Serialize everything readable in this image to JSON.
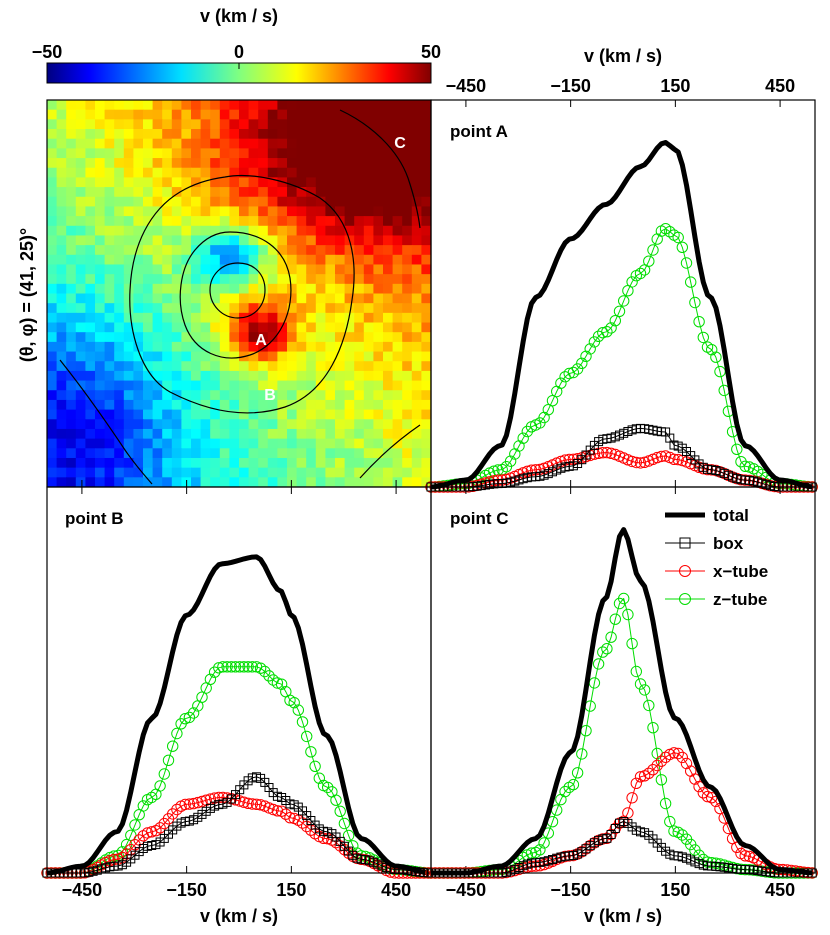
{
  "colorbar": {
    "title": "v (km / s)",
    "tick_labels": [
      "−50",
      "0",
      "50"
    ],
    "min": -50,
    "max": 50
  },
  "map_panel": {
    "ylabel": "(θ, φ) = (41, 25)°",
    "markers": [
      "A",
      "B",
      "C"
    ],
    "colormap": "jet"
  },
  "profile_axes": {
    "xlabel": "v (km / s)",
    "tick_labels": [
      "−450",
      "−150",
      "150",
      "450"
    ],
    "tick_values": [
      -450,
      -150,
      150,
      450
    ],
    "xlim": [
      -550,
      550
    ]
  },
  "legend": {
    "entries": [
      "total",
      "box",
      "x−tube",
      "z−tube"
    ]
  },
  "colors": {
    "total": "#000000",
    "box": "#000000",
    "x_tube": "#ff0000",
    "z_tube": "#00dd00"
  },
  "chart_data": [
    {
      "type": "heatmap",
      "title": "",
      "colorbar_label": "v (km / s)",
      "ylabel": "(θ, φ) = (41, 25)°",
      "clim": [
        -50,
        50
      ],
      "annotations": [
        "A",
        "B",
        "C"
      ],
      "features": {
        "A": 45,
        "B": 5,
        "C": 40,
        "center_blue_blob": -45
      }
    },
    {
      "type": "line",
      "title": "point A",
      "xlabel": "",
      "x": [
        -550,
        -450,
        -350,
        -250,
        -150,
        -50,
        50,
        120,
        150,
        250,
        350,
        450,
        550
      ],
      "ylim": [
        0,
        1.1
      ],
      "series": [
        {
          "name": "total",
          "values": [
            0,
            0.02,
            0.12,
            0.55,
            0.72,
            0.82,
            0.93,
            1.0,
            0.98,
            0.55,
            0.12,
            0.02,
            0
          ]
        },
        {
          "name": "box",
          "values": [
            0,
            0,
            0.01,
            0.03,
            0.06,
            0.14,
            0.17,
            0.16,
            0.12,
            0.05,
            0.02,
            0,
            0
          ]
        },
        {
          "name": "x−tube",
          "values": [
            0,
            0,
            0.02,
            0.05,
            0.08,
            0.1,
            0.07,
            0.09,
            0.08,
            0.05,
            0.02,
            0,
            0
          ]
        },
        {
          "name": "z−tube",
          "values": [
            0,
            0.01,
            0.05,
            0.18,
            0.33,
            0.45,
            0.62,
            0.75,
            0.73,
            0.4,
            0.06,
            0.01,
            0
          ]
        }
      ]
    },
    {
      "type": "line",
      "title": "point B",
      "xlabel": "v (km / s)",
      "x": [
        -550,
        -450,
        -350,
        -250,
        -150,
        -50,
        50,
        120,
        150,
        250,
        350,
        450,
        550
      ],
      "ylim": [
        0,
        1.1
      ],
      "series": [
        {
          "name": "total",
          "values": [
            0,
            0.02,
            0.12,
            0.45,
            0.75,
            0.9,
            0.92,
            0.82,
            0.75,
            0.4,
            0.1,
            0.02,
            0
          ]
        },
        {
          "name": "box",
          "values": [
            0,
            0,
            0.02,
            0.08,
            0.15,
            0.2,
            0.28,
            0.22,
            0.2,
            0.12,
            0.04,
            0.01,
            0
          ]
        },
        {
          "name": "x−tube",
          "values": [
            0,
            0,
            0.04,
            0.12,
            0.2,
            0.22,
            0.2,
            0.18,
            0.16,
            0.1,
            0.04,
            0,
            0
          ]
        },
        {
          "name": "z−tube",
          "values": [
            0,
            0,
            0.05,
            0.22,
            0.45,
            0.6,
            0.6,
            0.55,
            0.5,
            0.25,
            0.05,
            0.01,
            0
          ]
        }
      ]
    },
    {
      "type": "line",
      "title": "point C",
      "xlabel": "v (km / s)",
      "x": [
        -550,
        -450,
        -350,
        -250,
        -150,
        -50,
        0,
        50,
        150,
        250,
        350,
        450,
        550
      ],
      "ylim": [
        0,
        1.1
      ],
      "series": [
        {
          "name": "total",
          "values": [
            0,
            0,
            0.02,
            0.1,
            0.35,
            0.8,
            1.0,
            0.85,
            0.45,
            0.25,
            0.08,
            0.01,
            0
          ]
        },
        {
          "name": "box",
          "values": [
            0,
            0,
            0,
            0.03,
            0.05,
            0.1,
            0.15,
            0.12,
            0.05,
            0.02,
            0.01,
            0,
            0
          ]
        },
        {
          "name": "x−tube",
          "values": [
            0,
            0,
            0,
            0.02,
            0.05,
            0.1,
            0.15,
            0.28,
            0.35,
            0.22,
            0.05,
            0.01,
            0
          ]
        },
        {
          "name": "z−tube",
          "values": [
            0,
            0,
            0.01,
            0.06,
            0.25,
            0.65,
            0.8,
            0.55,
            0.12,
            0.03,
            0.01,
            0,
            0
          ]
        }
      ]
    }
  ]
}
